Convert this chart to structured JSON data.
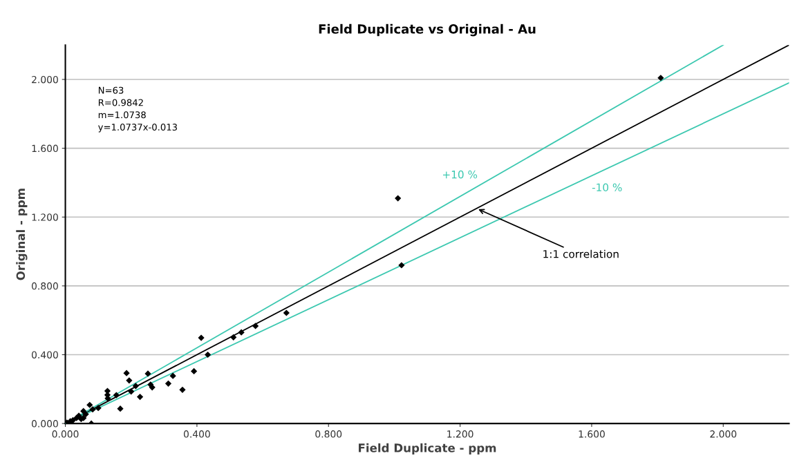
{
  "chart_data": {
    "type": "scatter",
    "title": "Field Duplicate vs Original - Au",
    "xlabel": "Field Duplicate - ppm",
    "ylabel": "Original - ppm",
    "xlim": [
      0,
      2.2
    ],
    "ylim": [
      0,
      2.2
    ],
    "xticks": [
      {
        "value": 0,
        "label": "0.000"
      },
      {
        "value": 0.4,
        "label": "0.400"
      },
      {
        "value": 0.8,
        "label": "0.800"
      },
      {
        "value": 1.2,
        "label": "1.200"
      },
      {
        "value": 1.6,
        "label": "1.600"
      },
      {
        "value": 2.0,
        "label": "2.000"
      }
    ],
    "yticks": [
      {
        "value": 0,
        "label": "0.000"
      },
      {
        "value": 0.4,
        "label": "0.400"
      },
      {
        "value": 0.8,
        "label": "0.800"
      },
      {
        "value": 1.2,
        "label": "1.200"
      },
      {
        "value": 1.6,
        "label": "1.600"
      },
      {
        "value": 2.0,
        "label": "2.000"
      }
    ],
    "grid": "y",
    "legend": false,
    "series": [
      {
        "color": "#000000",
        "marker": "diamond",
        "x": [
          1.81,
          1.011,
          1.022,
          0.672,
          0.413,
          0.511,
          0.535,
          0.578,
          0.433,
          0.186,
          0.251,
          0.391,
          0.194,
          0.327,
          0.214,
          0.259,
          0.264,
          0.313,
          0.356,
          0.2,
          0.128,
          0.128,
          0.129,
          0.155,
          0.227,
          0.167,
          0.1,
          0.074,
          0.079,
          0.083,
          0.055,
          0.041,
          0.034,
          0.023,
          0.015,
          0.005,
          0.055,
          0.048,
          0.062
        ],
        "values": [
          2.009,
          1.309,
          0.92,
          0.643,
          0.498,
          0.501,
          0.53,
          0.567,
          0.4,
          0.293,
          0.29,
          0.304,
          0.25,
          0.277,
          0.218,
          0.226,
          0.21,
          0.232,
          0.196,
          0.186,
          0.189,
          0.166,
          0.146,
          0.165,
          0.155,
          0.086,
          0.09,
          0.108,
          0.0,
          0.082,
          0.072,
          0.045,
          0.032,
          0.019,
          0.013,
          0.005,
          0.032,
          0.026,
          0.054
        ]
      },
      {
        "type": "line",
        "color": "#000000",
        "marker": "none",
        "line_style": "solid",
        "x": [
          0,
          2.2
        ],
        "values": [
          0,
          2.2
        ]
      },
      {
        "type": "line",
        "name": "+10 %",
        "color": "#3cc8b0",
        "marker": "none",
        "line_style": "solid",
        "x": [
          0,
          2.0
        ],
        "values": [
          0,
          2.2
        ]
      },
      {
        "type": "line",
        "name": "-10 %",
        "color": "#3cc8b0",
        "marker": "none",
        "line_style": "solid",
        "x": [
          0,
          2.2
        ],
        "values": [
          0,
          1.98
        ]
      }
    ],
    "annotations": [
      "N=63\nR=0.9842\nm=1.0738\ny=1.0737x-0.013",
      {
        "text": "1:1 correlation",
        "x": 1.25,
        "y": 1.25
      }
    ]
  }
}
